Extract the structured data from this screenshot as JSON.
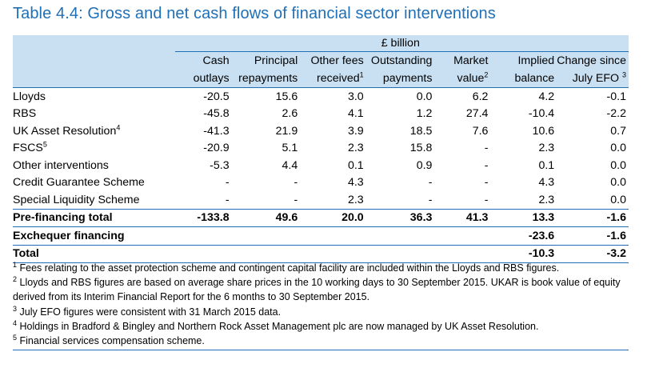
{
  "title": "Table 4.4: Gross and net cash flows of financial sector interventions",
  "unit": "£ billion",
  "columns": [
    {
      "line1": "Cash",
      "line2": "outlays",
      "sup": ""
    },
    {
      "line1": "Principal",
      "line2": "repayments",
      "sup": ""
    },
    {
      "line1": "Other fees",
      "line2": "received",
      "sup": "1"
    },
    {
      "line1": "Outstanding",
      "line2": "payments",
      "sup": ""
    },
    {
      "line1": "Market",
      "line2": "value",
      "sup": "2"
    },
    {
      "line1": "Implied",
      "line2": "balance",
      "sup": ""
    },
    {
      "line1": "Change since",
      "line2": "July EFO",
      "sup": "3"
    }
  ],
  "rows": [
    {
      "label": "Lloyds",
      "sup": "",
      "values": [
        "-20.5",
        "15.6",
        "3.0",
        "0.0",
        "6.2",
        "4.2",
        "-0.1"
      ]
    },
    {
      "label": "RBS",
      "sup": "",
      "values": [
        "-45.8",
        "2.6",
        "4.1",
        "1.2",
        "27.4",
        "-10.4",
        "-2.2"
      ]
    },
    {
      "label": "UK Asset Resolution",
      "sup": "4",
      "values": [
        "-41.3",
        "21.9",
        "3.9",
        "18.5",
        "7.6",
        "10.6",
        "0.7"
      ]
    },
    {
      "label": "FSCS",
      "sup": "5",
      "values": [
        "-20.9",
        "5.1",
        "2.3",
        "15.8",
        "-",
        "2.3",
        "0.0"
      ]
    },
    {
      "label": "Other interventions",
      "sup": "",
      "values": [
        "-5.3",
        "4.4",
        "0.1",
        "0.9",
        "-",
        "0.1",
        "0.0"
      ]
    },
    {
      "label": "Credit Guarantee Scheme",
      "sup": "",
      "values": [
        "-",
        "-",
        "4.3",
        "-",
        "-",
        "4.3",
        "0.0"
      ]
    },
    {
      "label": "Special Liquidity Scheme",
      "sup": "",
      "values": [
        "-",
        "-",
        "2.3",
        "-",
        "-",
        "2.3",
        "0.0"
      ]
    }
  ],
  "pre_financing": {
    "label": "Pre-financing total",
    "values": [
      "-133.8",
      "49.6",
      "20.0",
      "36.3",
      "41.3",
      "13.3",
      "-1.6"
    ]
  },
  "exchequer": {
    "label": "Exchequer financing",
    "values": [
      "",
      "",
      "",
      "",
      "",
      "-23.6",
      "-1.6"
    ]
  },
  "total": {
    "label": "Total",
    "values": [
      "",
      "",
      "",
      "",
      "",
      "-10.3",
      "-3.2"
    ]
  },
  "footnotes": [
    {
      "num": "1",
      "text": "Fees relating to the asset protection scheme and contingent capital facility are included within the Lloyds and RBS figures."
    },
    {
      "num": "2",
      "text": "Lloyds and RBS figures are based on average share prices in the 10 working days to 30 September 2015. UKAR is book value of equity derived from its Interim Financial Report for the 6 months to 30 September 2015."
    },
    {
      "num": "3",
      "text": "July EFO figures were consistent with 31 March 2015 data."
    },
    {
      "num": "4",
      "text": "Holdings in Bradford & Bingley and Northern Rock Asset Management plc are now managed by UK Asset Resolution."
    },
    {
      "num": "5",
      "text": "Financial services compensation scheme."
    }
  ],
  "colors": {
    "title": "#1f6fb6",
    "header_bg": "#c9e0f2",
    "rule": "#1f6fb6"
  }
}
